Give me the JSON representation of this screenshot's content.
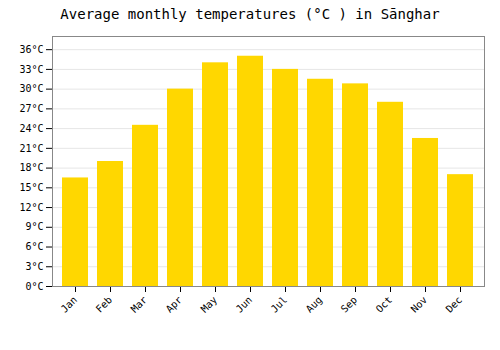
{
  "chart_data": {
    "type": "bar",
    "title": "Average monthly temperatures (°C ) in Sānghar",
    "categories": [
      "Jan",
      "Feb",
      "Mar",
      "Apr",
      "May",
      "Jun",
      "Jul",
      "Aug",
      "Sep",
      "Oct",
      "Nov",
      "Dec"
    ],
    "values": [
      16.5,
      19.0,
      24.5,
      30.0,
      34.0,
      35.0,
      33.0,
      31.5,
      30.8,
      28.0,
      22.5,
      17.0
    ],
    "color": "#FFD700",
    "ylim": [
      0,
      38
    ],
    "yticks": [
      {
        "value": 0,
        "label": "0°C"
      },
      {
        "value": 3,
        "label": "3°C"
      },
      {
        "value": 6,
        "label": "6°C"
      },
      {
        "value": 9,
        "label": "9°C"
      },
      {
        "value": 12,
        "label": "12°C"
      },
      {
        "value": 15,
        "label": "15°C"
      },
      {
        "value": 18,
        "label": "18°C"
      },
      {
        "value": 21,
        "label": "21°C"
      },
      {
        "value": 24,
        "label": "24°C"
      },
      {
        "value": 27,
        "label": "27°C"
      },
      {
        "value": 30,
        "label": "30°C"
      },
      {
        "value": 33,
        "label": "33°C"
      },
      {
        "value": 36,
        "label": "36°C"
      }
    ],
    "grid": true
  }
}
